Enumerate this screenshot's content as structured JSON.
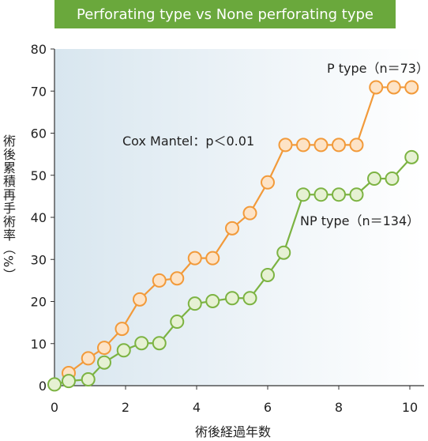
{
  "chart_data": {
    "type": "line",
    "title": "Perforating type vs None perforating type",
    "title_bg": "#6aa83c",
    "xlabel": "術後経過年数",
    "ylabel": "術後累積再手術率（%）",
    "xlim": [
      0,
      10.4
    ],
    "ylim": [
      0,
      80
    ],
    "xticks": [
      "0",
      "2",
      "4",
      "6",
      "8",
      "10"
    ],
    "yticks": [
      "0",
      "10",
      "20",
      "30",
      "40",
      "50",
      "60",
      "70",
      "80"
    ],
    "annotation": "Cox Mantel：p＜0.01",
    "series": [
      {
        "name": "P type（n＝73）",
        "color": "#f29a3a",
        "fill": "#fde3c6",
        "x": [
          0.4,
          0.95,
          1.4,
          1.9,
          2.4,
          2.95,
          3.45,
          3.95,
          4.45,
          5.0,
          5.5,
          6.0,
          6.5,
          7.0,
          7.5,
          8.0,
          8.5,
          9.05,
          9.55,
          10.05
        ],
        "y": [
          3,
          6.5,
          9,
          13.5,
          20.5,
          25,
          25.5,
          30.3,
          30.3,
          37.4,
          41,
          48.3,
          57.2,
          57.2,
          57.2,
          57.2,
          57.2,
          70.9,
          70.9,
          70.9
        ]
      },
      {
        "name": "NP type（n＝134）",
        "color": "#7cb342",
        "fill": "#e6f1d3",
        "x": [
          0.0,
          0.4,
          0.95,
          1.4,
          1.95,
          2.45,
          2.95,
          3.45,
          3.95,
          4.45,
          5.0,
          5.5,
          6.0,
          6.45,
          7.0,
          7.5,
          8.0,
          8.5,
          9.0,
          9.5,
          10.05
        ],
        "y": [
          0.3,
          1.1,
          1.5,
          5.5,
          8.4,
          10.1,
          10.1,
          15.2,
          19.5,
          20.1,
          20.8,
          20.8,
          26.3,
          31.6,
          45.4,
          45.4,
          45.4,
          45.4,
          49.2,
          49.2,
          54.3
        ]
      }
    ]
  }
}
